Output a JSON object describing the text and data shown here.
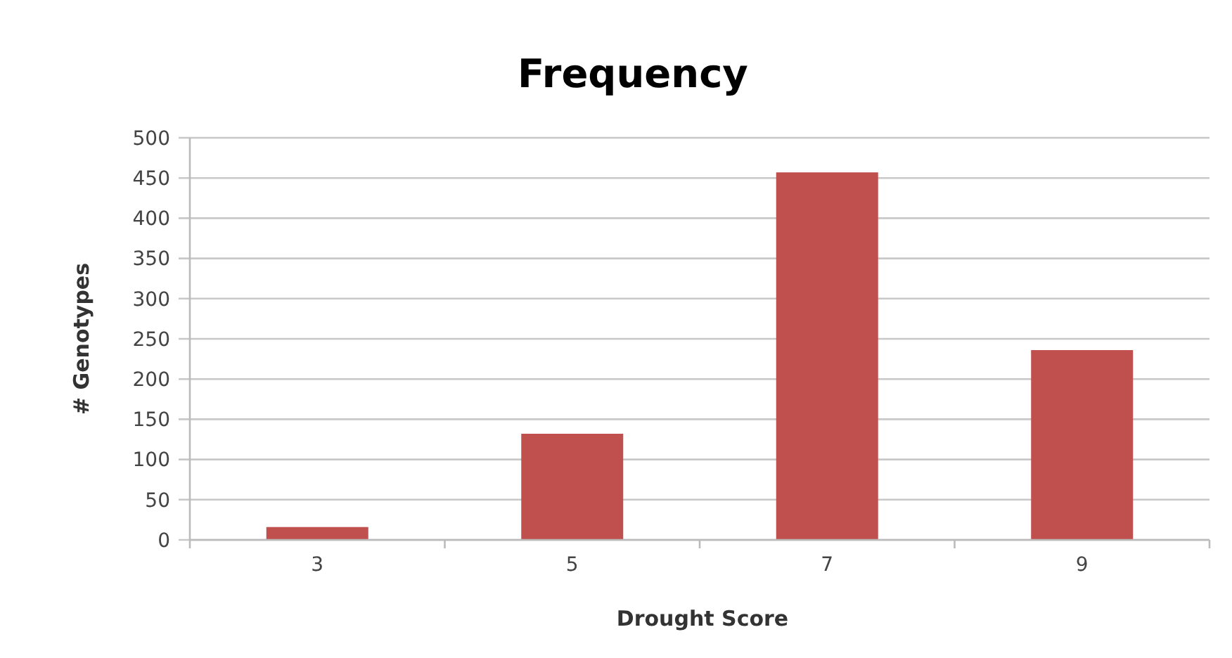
{
  "chart_data": {
    "type": "bar",
    "title": "Frequency",
    "xlabel": "Drought Score",
    "ylabel": "# Genotypes",
    "categories": [
      "3",
      "5",
      "7",
      "9"
    ],
    "values": [
      16,
      132,
      457,
      236
    ],
    "color": "#c0504d",
    "ylim": [
      0,
      500
    ],
    "yticks": [
      0,
      50,
      100,
      150,
      200,
      250,
      300,
      350,
      400,
      450,
      500
    ],
    "grid": "y"
  }
}
